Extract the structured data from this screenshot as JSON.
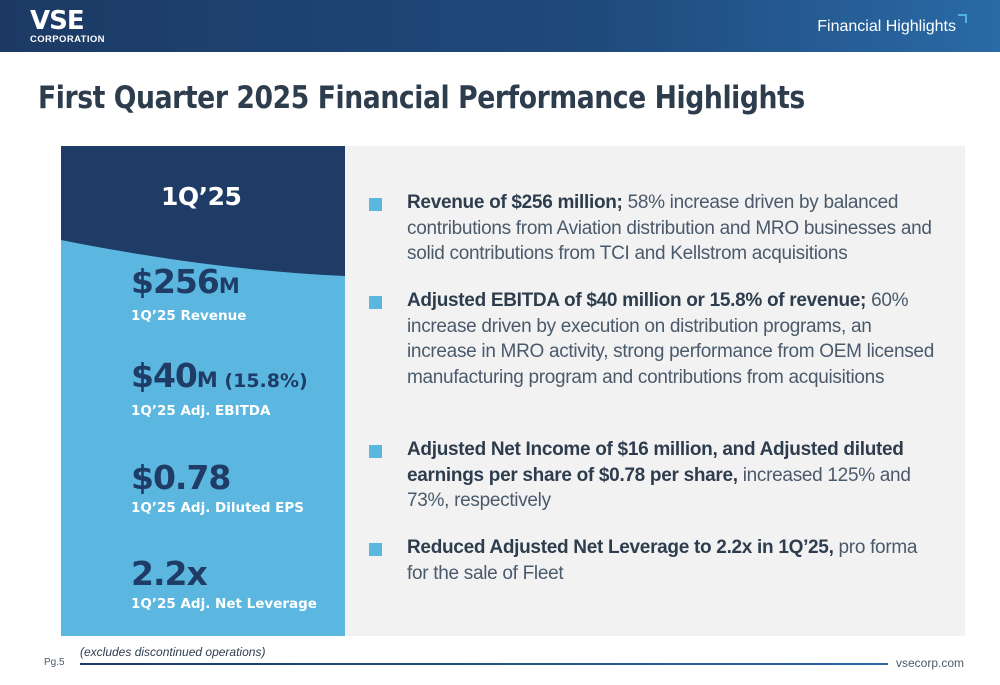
{
  "header": {
    "logo_main": "VSE",
    "logo_sub": "CORPORATION",
    "section": "Financial Highlights"
  },
  "title": "First Quarter 2025 Financial Performance Highlights",
  "left_panel": {
    "quarter": "1Q’25",
    "metrics": [
      {
        "value": "$256",
        "unit": "M",
        "extra": "",
        "label": "1Q’25 Revenue"
      },
      {
        "value": "$40",
        "unit": "M",
        "extra": " (15.8%)",
        "label": "1Q’25 Adj. EBITDA"
      },
      {
        "value": "$0.78",
        "unit": "",
        "extra": "",
        "label": "1Q’25 Adj. Diluted EPS"
      },
      {
        "value": "2.2x",
        "unit": "",
        "extra": "",
        "label": "1Q’25 Adj. Net Leverage"
      }
    ]
  },
  "bullets": [
    {
      "bold": "Revenue of $256 million;",
      "text": " 58% increase driven by balanced contributions from Aviation distribution and MRO businesses and solid contributions from TCI and Kellstrom acquisitions"
    },
    {
      "bold": "Adjusted EBITDA of $40 million or 15.8% of revenue;",
      "text": " 60% increase driven by execution on distribution programs, an increase in MRO activity, strong performance from OEM licensed manufacturing program and contributions from acquisitions"
    },
    {
      "bold": "Adjusted Net Income of $16 million, and Adjusted diluted earnings per share of $0.78 per share,",
      "text": " increased 125% and 73%, respectively"
    },
    {
      "bold": "Reduced Adjusted Net Leverage to 2.2x in 1Q’25,",
      "text": " pro forma for the sale of Fleet"
    }
  ],
  "footer": {
    "note": "(excludes discontinued operations)",
    "page": "Pg.5",
    "url": "vsecorp.com"
  },
  "colors": {
    "navy": "#1f3c66",
    "accent_blue": "#5bb7e0",
    "panel_gray": "#f2f2f3",
    "text": "#2e3d4e"
  }
}
